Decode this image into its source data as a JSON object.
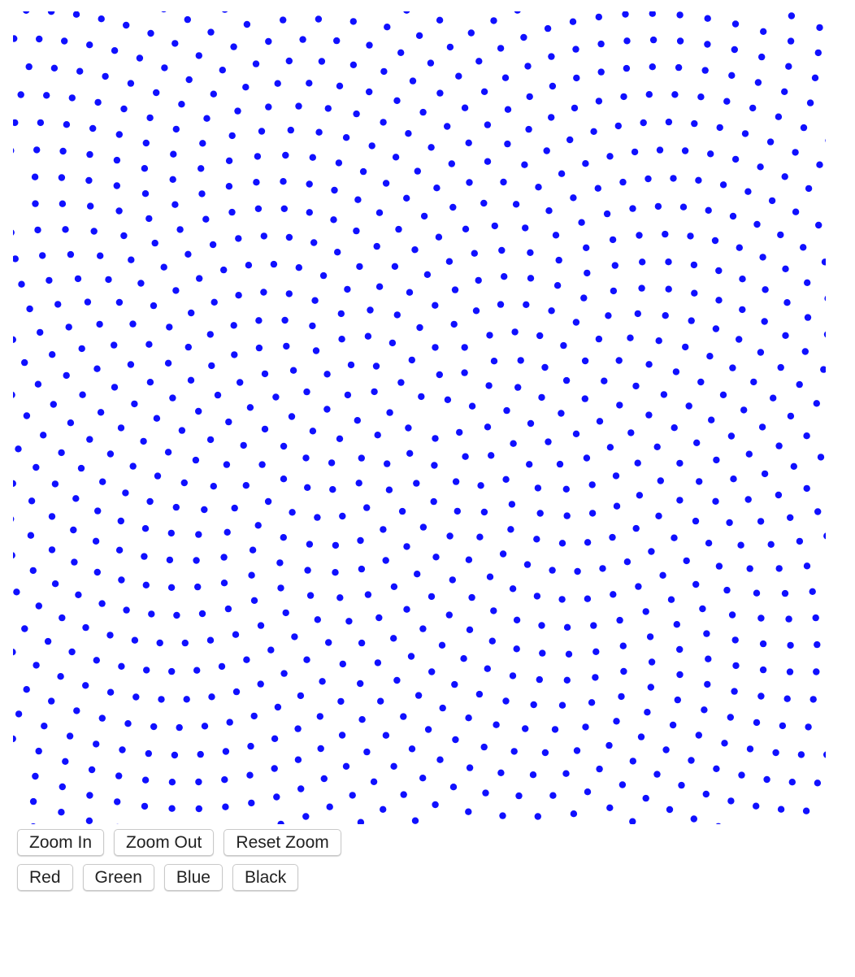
{
  "canvas": {
    "dot_color": "#1010ff",
    "background": "#ffffff",
    "pattern": "sunflower-spiral dot field (golden angle)",
    "zoom_level": 1
  },
  "zoom_controls": {
    "zoom_in_label": "Zoom In",
    "zoom_out_label": "Zoom Out",
    "reset_zoom_label": "Reset Zoom"
  },
  "color_controls": {
    "red_label": "Red",
    "green_label": "Green",
    "blue_label": "Blue",
    "black_label": "Black"
  }
}
